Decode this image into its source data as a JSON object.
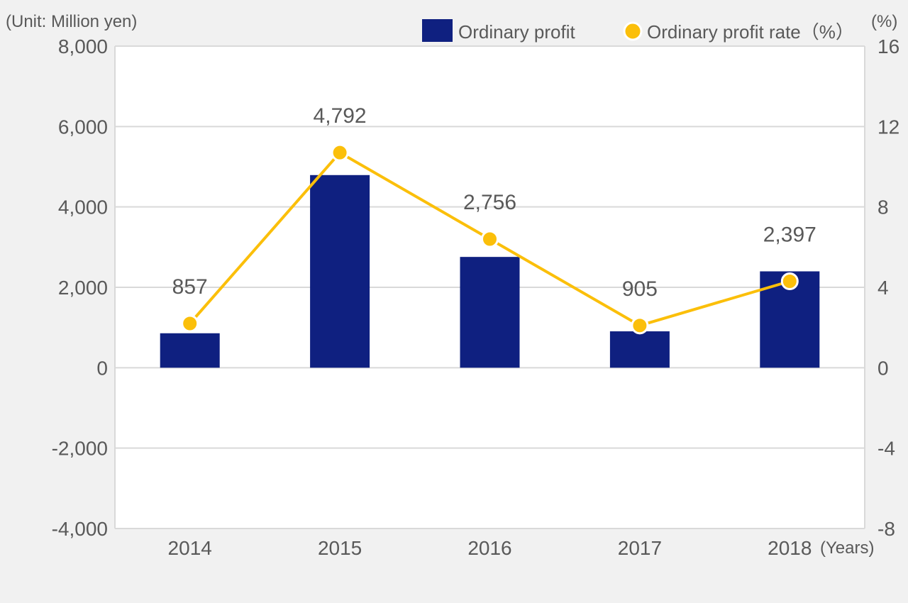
{
  "chart_data": {
    "type": "bar",
    "unit_label": "(Unit: Million yen)",
    "right_unit_label": "(%)",
    "x_unit_label": "(Years)",
    "categories": [
      "2014",
      "2015",
      "2016",
      "2017",
      "2018"
    ],
    "series": [
      {
        "name": "Ordinary profit",
        "type": "bar",
        "axis": "left",
        "values": [
          857,
          4792,
          2756,
          905,
          2397
        ],
        "data_labels": [
          "857",
          "4,792",
          "2,756",
          "905",
          "2,397"
        ]
      },
      {
        "name": "Ordinary profit rate（%）",
        "type": "line",
        "axis": "right",
        "values": [
          2.2,
          10.7,
          6.4,
          2.1,
          4.3
        ]
      }
    ],
    "y_left": {
      "ylim": [
        -4000,
        8000
      ],
      "ticks": [
        8000,
        6000,
        4000,
        2000,
        0,
        -2000,
        -4000
      ],
      "tick_labels": [
        "8,000",
        "6,000",
        "4,000",
        "2,000",
        "0",
        "-2,000",
        "-4,000"
      ]
    },
    "y_right": {
      "ylim": [
        -8,
        16
      ],
      "ticks": [
        16,
        12,
        8,
        4,
        0,
        -4,
        -8
      ],
      "tick_labels": [
        "16",
        "12",
        "8",
        "4",
        "0",
        "-4",
        "-8"
      ]
    },
    "grid": true,
    "legend_position": "top-right",
    "colors": {
      "bar": "#0f2080",
      "line": "#fbbf0a",
      "grid": "#d9d9d9",
      "plot_bg": "#ffffff"
    }
  }
}
